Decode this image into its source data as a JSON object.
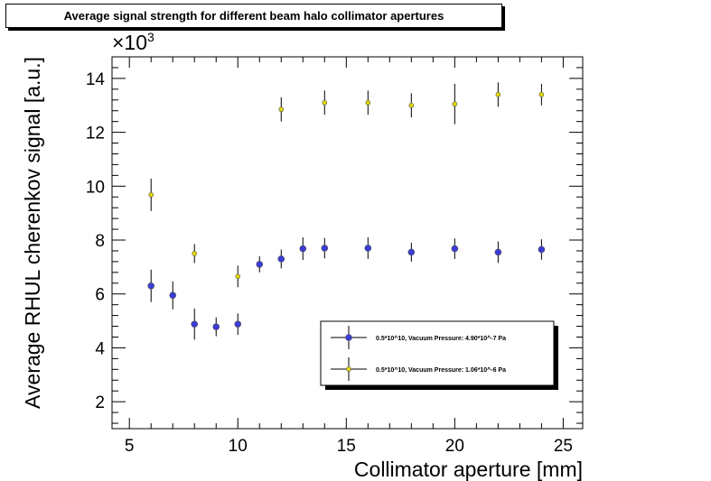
{
  "chart_data": {
    "type": "scatter",
    "title": "Average signal strength for different beam halo collimator apertures",
    "xlabel": "Collimator aperture [mm]",
    "ylabel": "Average RHUL cherenkov signal [a.u.]",
    "y_multiplier_label": "×10",
    "y_multiplier_exponent": "3",
    "xlim": [
      4.2,
      25.9
    ],
    "ylim": [
      1000,
      14800
    ],
    "x_ticks": [
      5,
      10,
      15,
      20,
      25
    ],
    "y_ticks": [
      2000,
      4000,
      6000,
      8000,
      10000,
      12000,
      14000
    ],
    "x_tick_labels": [
      "5",
      "10",
      "15",
      "20",
      "25"
    ],
    "y_tick_labels": [
      "2",
      "4",
      "6",
      "8",
      "10",
      "12",
      "14"
    ],
    "grid": false,
    "legend_position": "lower-right",
    "series": [
      {
        "name": "0.5*10^10, Vacuum Pressure: 4.90*10^-7 Pa",
        "color": "#3b3bd6",
        "x": [
          6,
          7,
          8,
          9,
          10,
          11,
          12,
          13,
          14,
          16,
          18,
          20,
          22,
          24
        ],
        "y": [
          6300,
          5950,
          4880,
          4780,
          4880,
          7100,
          7300,
          7680,
          7700,
          7700,
          7550,
          7680,
          7550,
          7650
        ],
        "err": [
          600,
          520,
          580,
          350,
          400,
          300,
          350,
          420,
          380,
          400,
          350,
          380,
          400,
          380
        ]
      },
      {
        "name": "0.5*10^10, Vacuum Pressure: 1.06*10^-6 Pa",
        "color": "#e6d800",
        "x": [
          6,
          8,
          10,
          12,
          14,
          16,
          18,
          20,
          22,
          24
        ],
        "y": [
          9680,
          7500,
          6650,
          12850,
          13100,
          13100,
          13000,
          13050,
          13400,
          13400
        ],
        "err": [
          600,
          350,
          400,
          450,
          450,
          450,
          450,
          750,
          450,
          400
        ]
      }
    ]
  }
}
